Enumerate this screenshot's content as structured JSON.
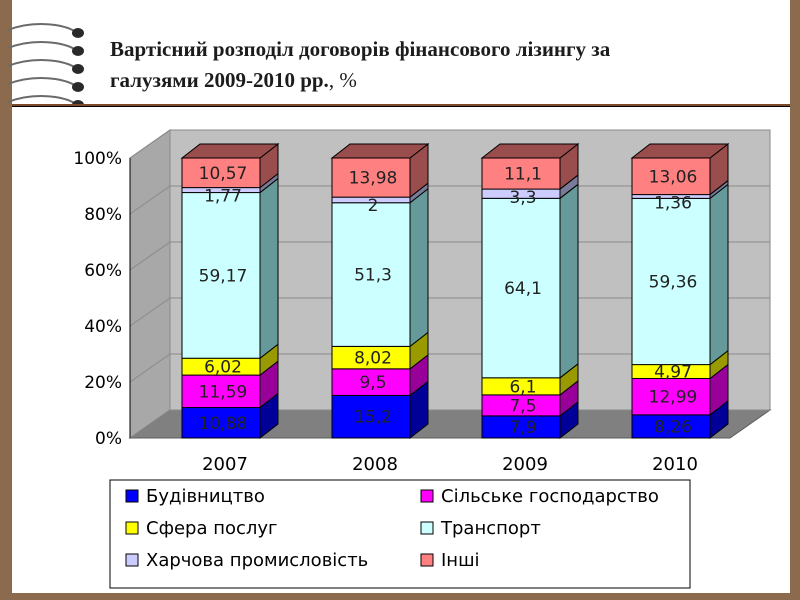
{
  "slide": {
    "title_line1": "Вартісний розподіл договорів фінансового лізингу за",
    "title_line2": "галузями 2009-2010 рр.",
    "title_suffix": ", %"
  },
  "colors": {
    "frame": "#8c6a4e",
    "wall": "#c0c0c0",
    "floor": "#808080"
  },
  "chart_data": {
    "type": "bar",
    "stacked": true,
    "three_d": true,
    "percent_stacked": true,
    "categories": [
      "2007",
      "2008",
      "2009",
      "2010"
    ],
    "yticks": [
      "0%",
      "20%",
      "40%",
      "60%",
      "80%",
      "100%"
    ],
    "ylim": [
      0,
      100
    ],
    "legend_position": "bottom",
    "series": [
      {
        "name": "Будівництво",
        "color": "#0000ff",
        "side": "#000099",
        "values": [
          10.88,
          15.2,
          7.9,
          8.26
        ],
        "labels": [
          "10,88",
          "15,2",
          "7,9",
          "8,26"
        ]
      },
      {
        "name": "Сільське господарство",
        "color": "#ff00ff",
        "side": "#990099",
        "values": [
          11.59,
          9.5,
          7.5,
          12.99
        ],
        "labels": [
          "11,59",
          "9,5",
          "7,5",
          "12,99"
        ]
      },
      {
        "name": "Сфера послуг",
        "color": "#ffff00",
        "side": "#999900",
        "values": [
          6.02,
          8.02,
          6.1,
          4.97
        ],
        "labels": [
          "6,02",
          "8,02",
          "6,1",
          "4,97"
        ]
      },
      {
        "name": "Транспорт",
        "color": "#ccffff",
        "side": "#669999",
        "values": [
          59.17,
          51.3,
          64.1,
          59.36
        ],
        "labels": [
          "59,17",
          "51,3",
          "64,1",
          "59,36"
        ]
      },
      {
        "name": "Харчова промисловість",
        "color": "#ccccff",
        "side": "#7a7a99",
        "values": [
          1.77,
          2,
          3.3,
          1.36
        ],
        "labels": [
          "1,77",
          "2",
          "3,3",
          "1,36"
        ]
      },
      {
        "name": "Інші",
        "color": "#ff8080",
        "side": "#994d4d",
        "values": [
          10.57,
          13.98,
          11.1,
          13.06
        ],
        "labels": [
          "10,57",
          "13,98",
          "11,1",
          "13,06"
        ]
      }
    ]
  }
}
